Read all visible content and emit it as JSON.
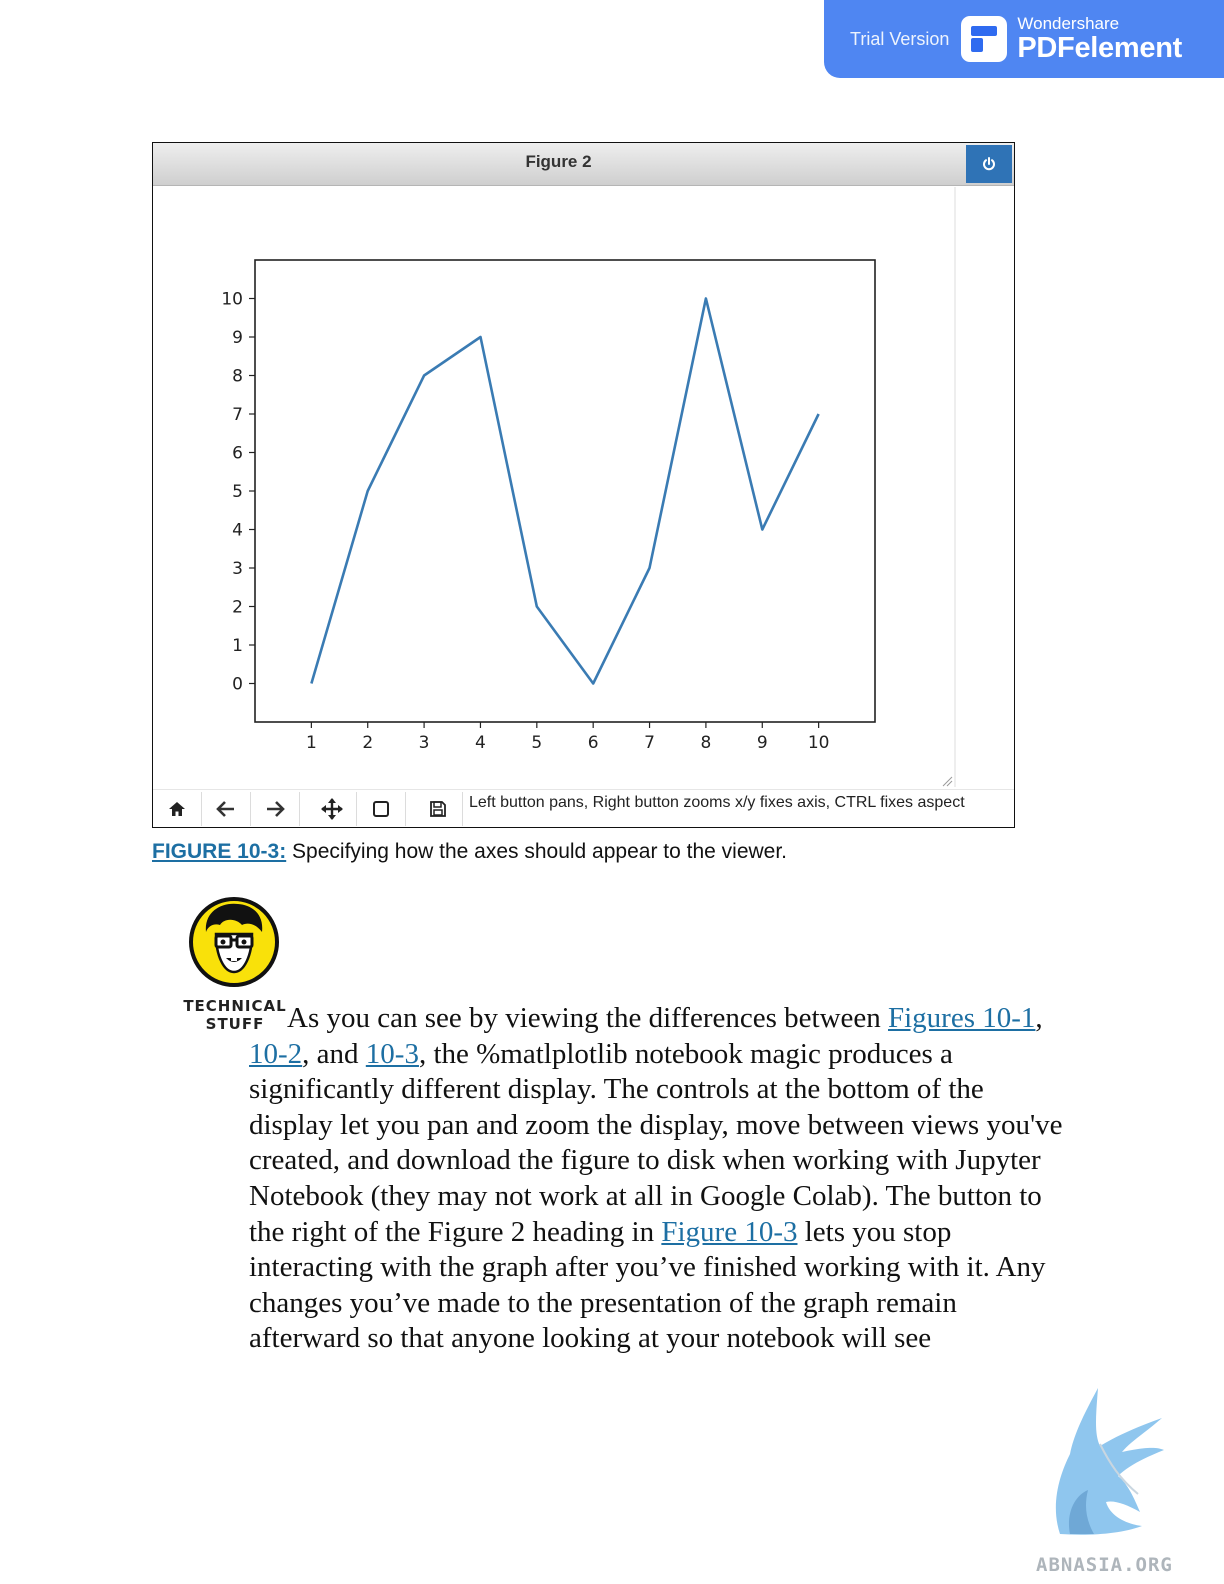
{
  "banner": {
    "trial_text": "Trial Version",
    "brand_small": "Wondershare",
    "brand_big": "PDFelement",
    "bg_color": "#4f86f2"
  },
  "figure_window": {
    "title": "Figure 2",
    "power_icon": "power-icon",
    "toolbar": {
      "buttons": [
        "home-icon",
        "back-arrow-icon",
        "forward-arrow-icon",
        "pan-icon",
        "zoom-rect-icon",
        "save-icon"
      ],
      "message": "Left button pans, Right button zooms x/y fixes axis, CTRL fixes aspect"
    }
  },
  "chart_data": {
    "type": "line",
    "x": [
      1,
      2,
      3,
      4,
      5,
      6,
      7,
      8,
      9,
      10
    ],
    "y": [
      0,
      5,
      8,
      9,
      2,
      0,
      3,
      10,
      4,
      7
    ],
    "xticks": [
      "1",
      "2",
      "3",
      "4",
      "5",
      "6",
      "7",
      "8",
      "9",
      "10"
    ],
    "yticks": [
      "0",
      "1",
      "2",
      "3",
      "4",
      "5",
      "6",
      "7",
      "8",
      "9",
      "10"
    ],
    "xlim": [
      0,
      11
    ],
    "ylim": [
      -1,
      11
    ],
    "grid": false,
    "line_color": "#3a7bb3"
  },
  "caption": {
    "ref": "FIGURE 10-3:",
    "text": " Specifying how the axes should appear to the viewer."
  },
  "tech_icon": {
    "icon": "technical-stuff-icon",
    "label_line1": "TECHNICAL",
    "label_line2": "STUFF"
  },
  "paragraph": {
    "t1": "As you can see by viewing the differences between ",
    "link1": "Figures 10-1",
    "t2": ", ",
    "link2": "10-2",
    "t3": ", and ",
    "link3": "10-3",
    "t4": ", the %matlplotlib notebook magic produces a significantly different display. The controls at the bottom of the display let you pan and zoom the display, move between views you've created, and download the figure to disk when working with Jupyter Notebook (they may not work at all in Google Colab). The button to the right of the Figure 2 heading in ",
    "link4": "Figure 10-3",
    "t5": " lets you stop interacting with the graph after you’ve finished working with it. Any changes you’ve made to the presentation of the graph remain afterward so that anyone looking at your notebook will see"
  },
  "watermark": {
    "text": "ABNASIA.ORG",
    "icon": "griffin-logo-icon"
  }
}
